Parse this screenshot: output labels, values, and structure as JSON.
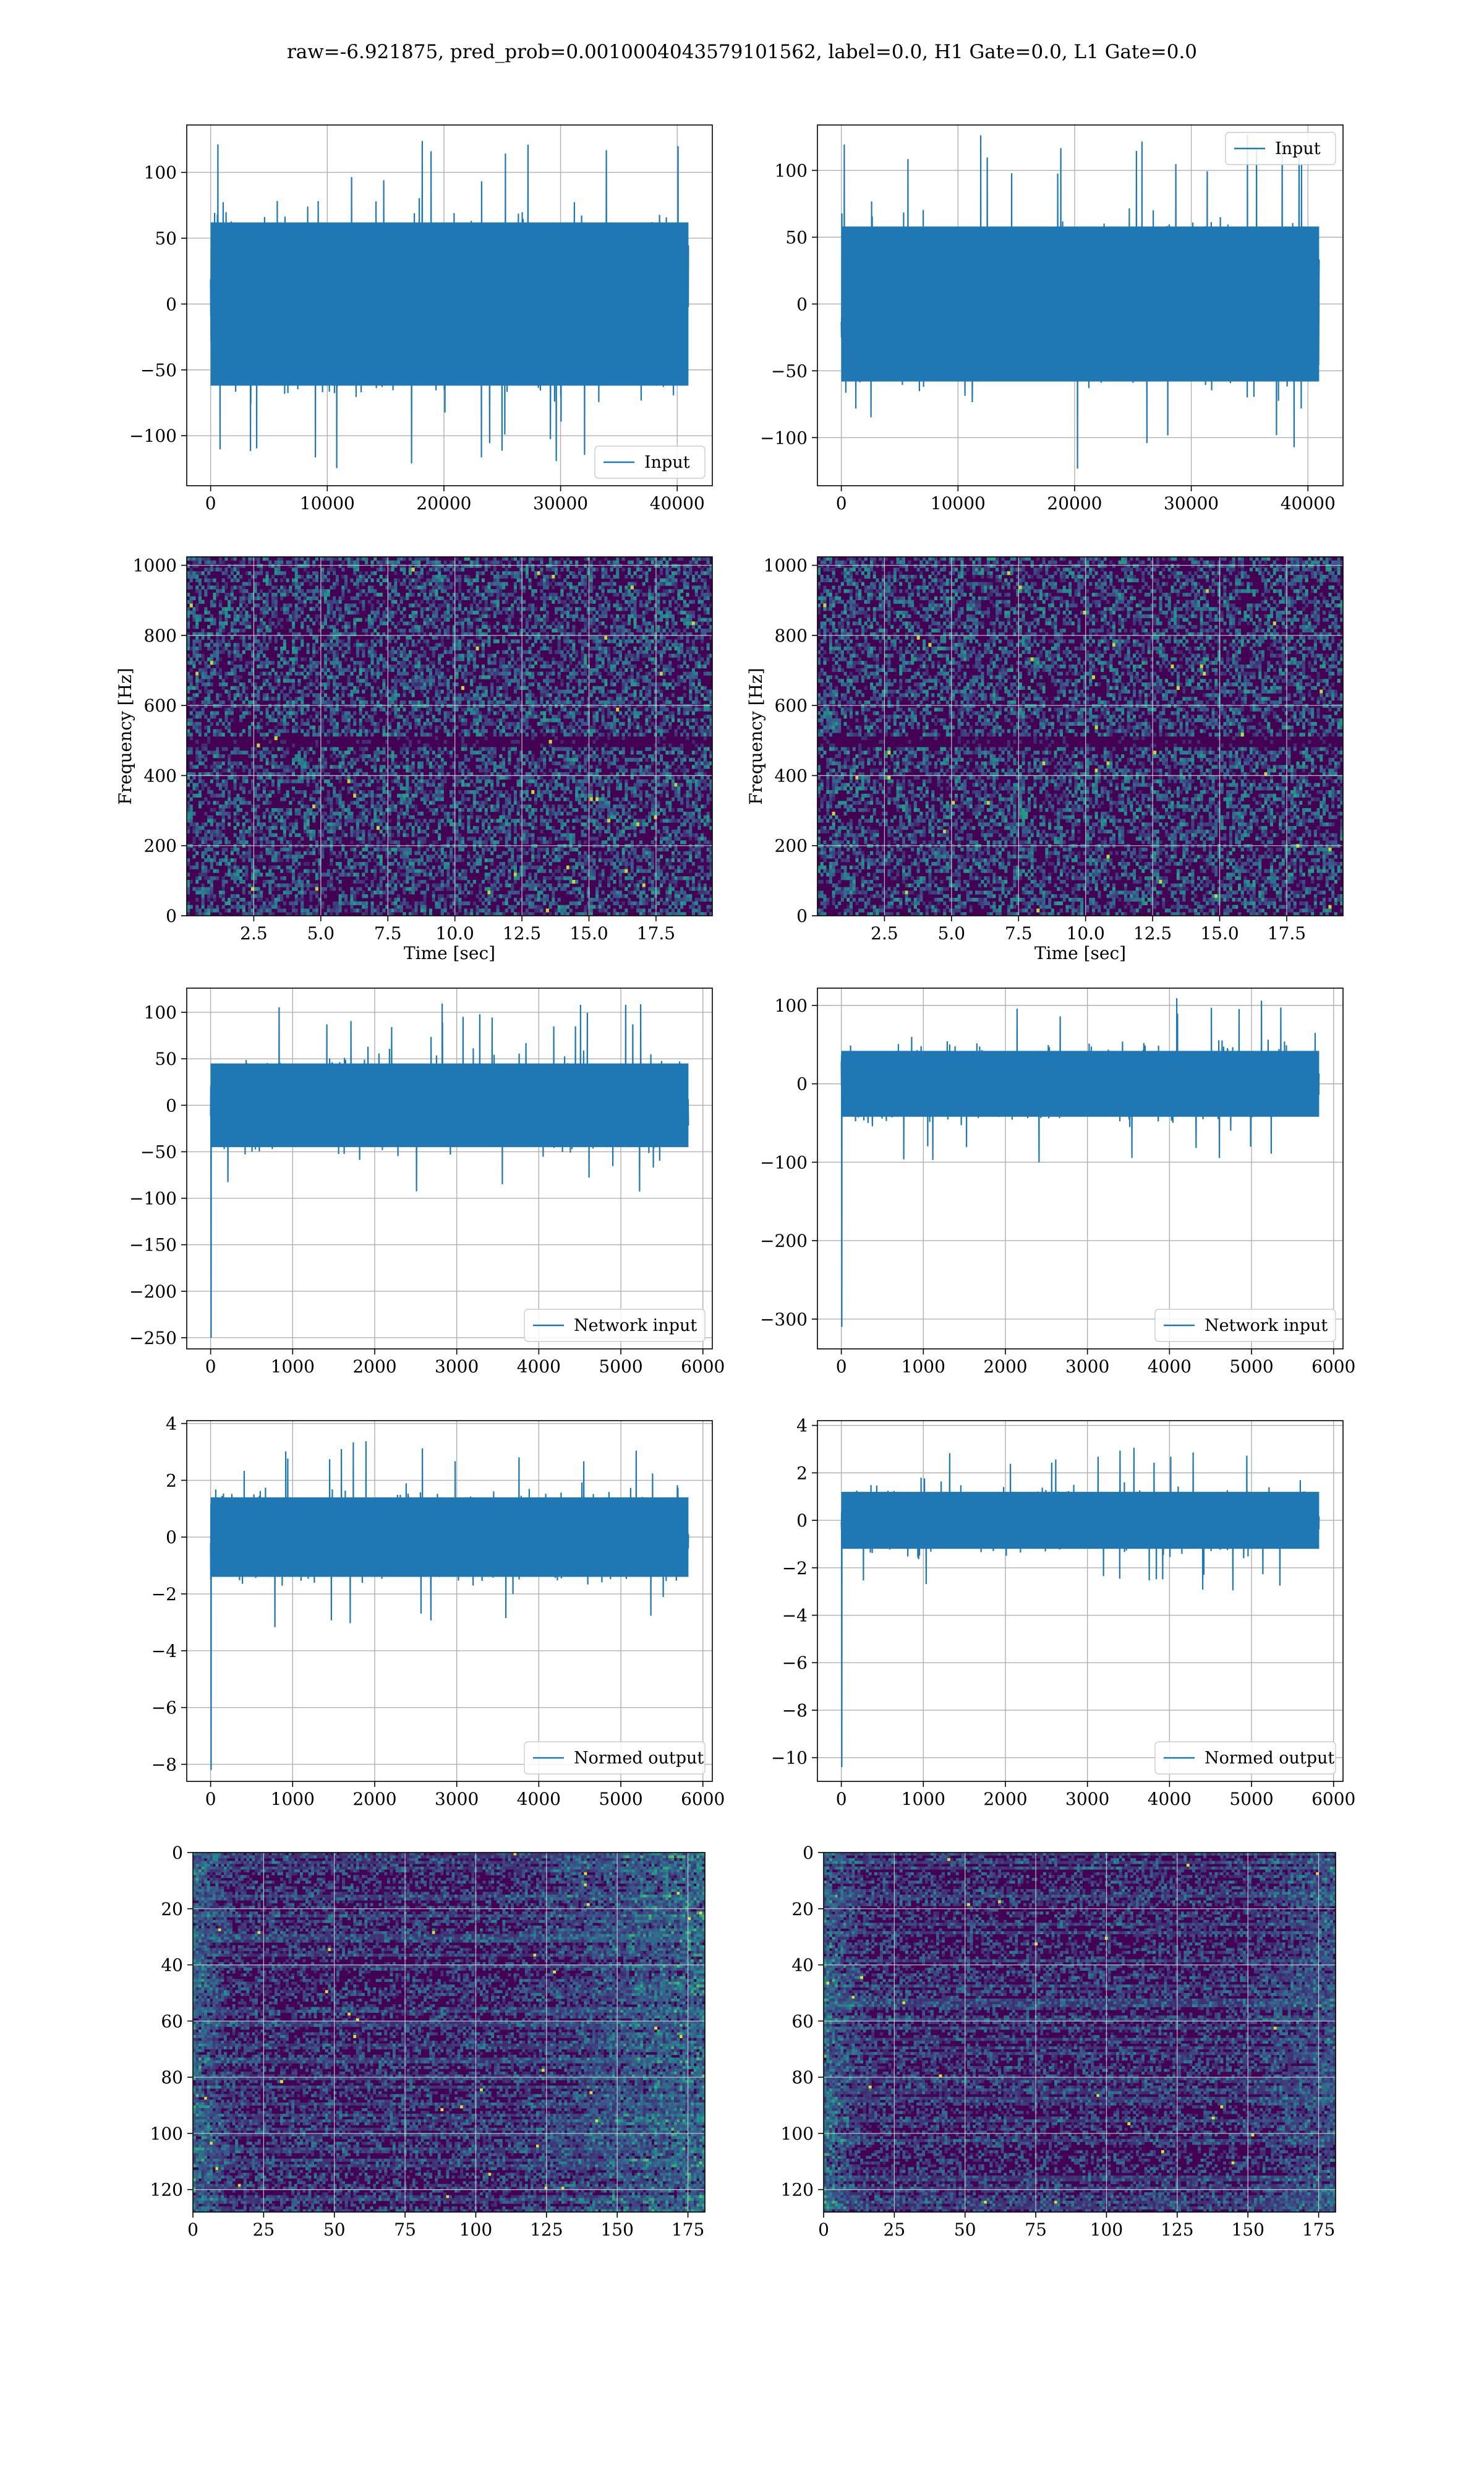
{
  "figure": {
    "title": "raw=-6.921875, pred_prob=0.0010004043579101562, label=0.0, H1 Gate=0.0, L1 Gate=0.0"
  },
  "colors": {
    "series": "#1f77b4",
    "grid": "#b0b0b0",
    "viridis_dark": "#440154",
    "viridis_blue": "#31688e",
    "viridis_teal": "#21918c",
    "viridis_green": "#35b779",
    "viridis_yellow": "#fde725"
  },
  "chart_data": [
    {
      "id": "input-h1",
      "type": "line",
      "legend": "Input",
      "legend_loc": "lower-right",
      "x_range": [
        0,
        40960
      ],
      "xlim": [
        -2048,
        43008
      ],
      "ylim": [
        -138,
        136
      ],
      "xticks": [
        0,
        10000,
        20000,
        30000,
        40000
      ],
      "yticks": [
        -100,
        -50,
        0,
        50,
        100
      ],
      "envelope": {
        "amplitude": 62,
        "peak_max": 124,
        "peak_min": -130
      },
      "grid": true
    },
    {
      "id": "input-l1",
      "type": "line",
      "legend": "Input",
      "legend_loc": "upper-right",
      "x_range": [
        0,
        40960
      ],
      "xlim": [
        -2048,
        43008
      ],
      "ylim": [
        -136,
        134
      ],
      "xticks": [
        0,
        10000,
        20000,
        30000,
        40000
      ],
      "yticks": [
        -100,
        -50,
        0,
        50,
        100
      ],
      "envelope": {
        "amplitude": 58,
        "peak_max": 127,
        "peak_min": -126
      },
      "grid": true
    },
    {
      "id": "spectrogram-h1",
      "type": "heatmap",
      "colormap": "viridis",
      "xlabel": "Time [sec]",
      "ylabel": "Frequency [Hz]",
      "xlim": [
        0,
        19.6
      ],
      "ylim": [
        0,
        1024
      ],
      "xticks": [
        2.5,
        5.0,
        7.5,
        10.0,
        12.5,
        15.0,
        17.5
      ],
      "yticks": [
        0,
        200,
        400,
        600,
        800,
        1000
      ],
      "xtick_labels": [
        "2.5",
        "5.0",
        "7.5",
        "10.0",
        "12.5",
        "15.0",
        "17.5"
      ],
      "grid": true
    },
    {
      "id": "spectrogram-l1",
      "type": "heatmap",
      "colormap": "viridis",
      "xlabel": "Time [sec]",
      "ylabel": "Frequency [Hz]",
      "xlim": [
        0,
        19.6
      ],
      "ylim": [
        0,
        1024
      ],
      "xticks": [
        2.5,
        5.0,
        7.5,
        10.0,
        12.5,
        15.0,
        17.5
      ],
      "yticks": [
        0,
        200,
        400,
        600,
        800,
        1000
      ],
      "xtick_labels": [
        "2.5",
        "5.0",
        "7.5",
        "10.0",
        "12.5",
        "15.0",
        "17.5"
      ],
      "grid": true
    },
    {
      "id": "network-input-h1",
      "type": "line",
      "legend": "Network input",
      "legend_loc": "lower-right",
      "x_range": [
        0,
        5824
      ],
      "xlim": [
        -291,
        6115
      ],
      "ylim": [
        -262,
        126
      ],
      "xticks": [
        0,
        1000,
        2000,
        3000,
        4000,
        5000,
        6000
      ],
      "yticks": [
        -250,
        -200,
        -150,
        -100,
        -50,
        0,
        50,
        100
      ],
      "envelope": {
        "amplitude": 45,
        "peak_max": 110,
        "peak_min": -100,
        "spike_at_start": -250
      },
      "grid": true
    },
    {
      "id": "network-input-l1",
      "type": "line",
      "legend": "Network input",
      "legend_loc": "lower-right",
      "x_range": [
        0,
        5824
      ],
      "xlim": [
        -291,
        6115
      ],
      "ylim": [
        -338,
        122
      ],
      "xticks": [
        0,
        1000,
        2000,
        3000,
        4000,
        5000,
        6000
      ],
      "yticks": [
        -300,
        -200,
        -100,
        0,
        100
      ],
      "envelope": {
        "amplitude": 42,
        "peak_max": 112,
        "peak_min": -103,
        "spike_at_start": -310
      },
      "grid": true
    },
    {
      "id": "normed-output-h1",
      "type": "line",
      "legend": "Normed output",
      "legend_loc": "lower-right",
      "x_range": [
        0,
        5824
      ],
      "xlim": [
        -291,
        6115
      ],
      "ylim": [
        -8.6,
        4.1
      ],
      "xticks": [
        0,
        1000,
        2000,
        3000,
        4000,
        5000,
        6000
      ],
      "yticks": [
        -8,
        -6,
        -4,
        -2,
        0,
        2,
        4
      ],
      "envelope": {
        "amplitude": 1.4,
        "peak_max": 3.5,
        "peak_min": -3.2,
        "spike_at_start": -8.2
      },
      "grid": true
    },
    {
      "id": "normed-output-l1",
      "type": "line",
      "legend": "Normed output",
      "legend_loc": "lower-right",
      "x_range": [
        0,
        5824
      ],
      "xlim": [
        -291,
        6115
      ],
      "ylim": [
        -11.0,
        4.2
      ],
      "xticks": [
        0,
        1000,
        2000,
        3000,
        4000,
        5000,
        6000
      ],
      "yticks": [
        -10,
        -8,
        -6,
        -4,
        -2,
        0,
        2,
        4
      ],
      "envelope": {
        "amplitude": 1.2,
        "peak_max": 3.1,
        "peak_min": -3.0,
        "spike_at_start": -10.4
      },
      "grid": true
    },
    {
      "id": "feature-map-h1",
      "type": "heatmap",
      "colormap": "viridis",
      "xlim": [
        0,
        181
      ],
      "ylim": [
        128,
        0
      ],
      "xticks": [
        0,
        25,
        50,
        75,
        100,
        125,
        150,
        175
      ],
      "yticks": [
        0,
        20,
        40,
        60,
        80,
        100,
        120
      ],
      "grid": true
    },
    {
      "id": "feature-map-l1",
      "type": "heatmap",
      "colormap": "viridis",
      "xlim": [
        0,
        181
      ],
      "ylim": [
        128,
        0
      ],
      "xticks": [
        0,
        25,
        50,
        75,
        100,
        125,
        150,
        175
      ],
      "yticks": [
        0,
        20,
        40,
        60,
        80,
        100,
        120
      ],
      "grid": true
    }
  ]
}
